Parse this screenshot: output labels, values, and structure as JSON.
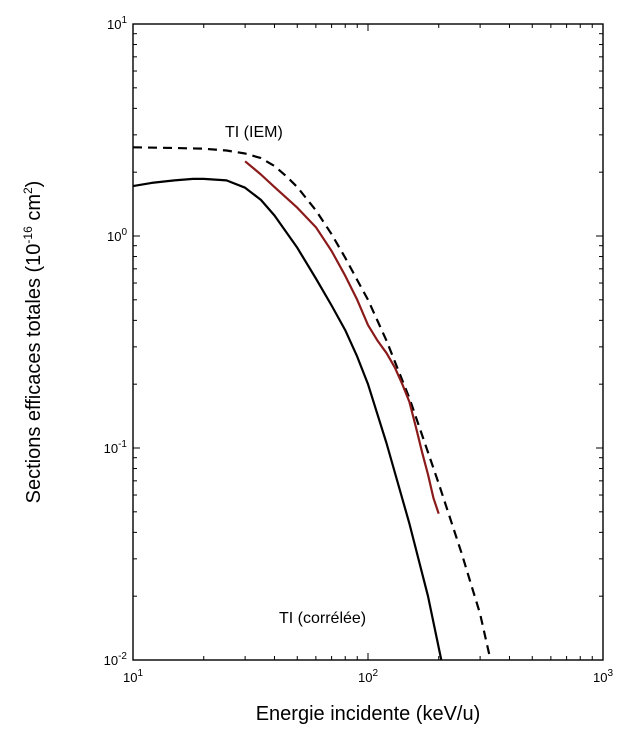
{
  "chart_data": {
    "type": "line",
    "xscale": "log",
    "yscale": "log",
    "xlim": [
      10,
      1000
    ],
    "ylim": [
      0.01,
      10
    ],
    "grid": false,
    "xlabel": "Energie incidente (keV/u)",
    "ylabel": {
      "prefix": "Sections efficaces totales (10",
      "exp": "-16",
      "middle": " cm",
      "sup": "2",
      "suffix": ")"
    },
    "x_ticks": [
      {
        "base": "10",
        "exp": "1"
      },
      {
        "base": "10",
        "exp": "2"
      },
      {
        "base": "10",
        "exp": "3"
      }
    ],
    "y_ticks": [
      {
        "base": "10",
        "exp": "-2"
      },
      {
        "base": "10",
        "exp": "-1"
      },
      {
        "base": "10",
        "exp": "0"
      },
      {
        "base": "10",
        "exp": "1"
      }
    ],
    "annotations": {
      "iem": "TI (IEM)",
      "correlee": "TI (corrélée)"
    },
    "series": [
      {
        "style": "dashed",
        "color": "#000000",
        "x": [
          10,
          15,
          20,
          25,
          30,
          35,
          40,
          45,
          50,
          60,
          70,
          80,
          90,
          100,
          120,
          150,
          200,
          250,
          300,
          332
        ],
        "y": [
          2.62,
          2.6,
          2.58,
          2.53,
          2.45,
          2.33,
          2.14,
          1.91,
          1.7,
          1.32,
          1.02,
          0.79,
          0.62,
          0.5,
          0.32,
          0.172,
          0.068,
          0.032,
          0.0165,
          0.01
        ]
      },
      {
        "style": "solid",
        "color": "#000000",
        "x": [
          10,
          12,
          15,
          18,
          20,
          25,
          30,
          35,
          40,
          50,
          60,
          70,
          80,
          90,
          100,
          120,
          150,
          180,
          205
        ],
        "y": [
          1.72,
          1.78,
          1.83,
          1.86,
          1.86,
          1.83,
          1.69,
          1.48,
          1.25,
          0.88,
          0.63,
          0.47,
          0.36,
          0.27,
          0.2,
          0.105,
          0.044,
          0.02,
          0.01
        ]
      },
      {
        "style": "solid",
        "color": "#8b1a1a",
        "x": [
          30,
          35,
          40,
          50,
          60,
          70,
          80,
          90,
          100,
          110,
          120,
          130,
          140,
          150,
          160,
          170,
          180,
          190,
          200
        ],
        "y": [
          2.25,
          1.95,
          1.7,
          1.36,
          1.1,
          0.85,
          0.65,
          0.5,
          0.38,
          0.32,
          0.28,
          0.24,
          0.2,
          0.165,
          0.125,
          0.095,
          0.075,
          0.058,
          0.049
        ]
      }
    ]
  }
}
